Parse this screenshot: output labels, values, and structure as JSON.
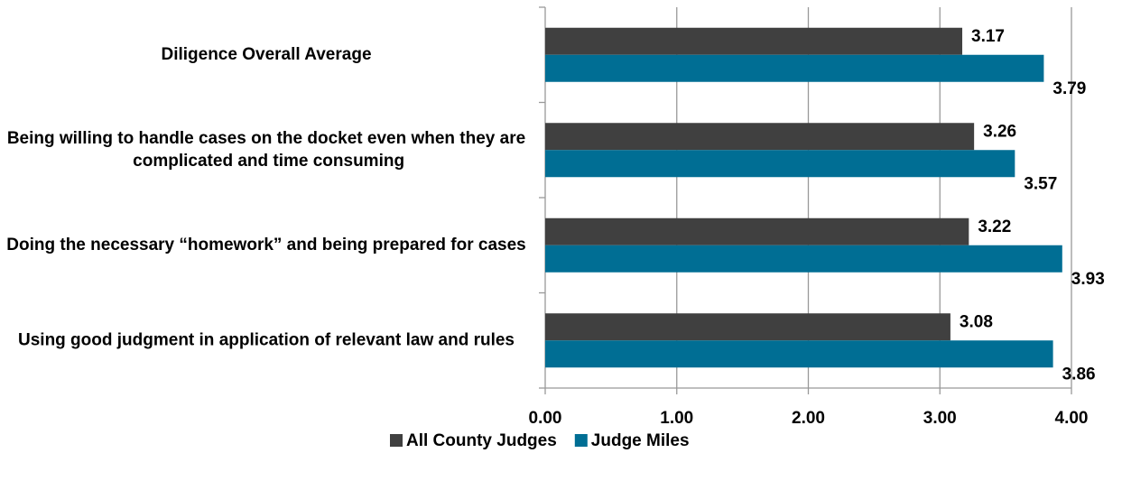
{
  "chart_data": {
    "type": "bar",
    "orientation": "horizontal",
    "categories": [
      "Diligence Overall Average",
      "Being willing to handle cases on the docket even when they are complicated and time consuming",
      "Doing the necessary “homework” and being prepared for cases",
      "Using good judgment in application of relevant law and rules"
    ],
    "series": [
      {
        "name": "All County Judges",
        "color": "#404040",
        "values": [
          3.17,
          3.26,
          3.22,
          3.08
        ]
      },
      {
        "name": "Judge Miles",
        "color": "#006e94",
        "values": [
          3.79,
          3.57,
          3.93,
          3.86
        ]
      }
    ],
    "xlim": [
      0,
      4
    ],
    "xticks": [
      {
        "value": 0,
        "label": "0.00"
      },
      {
        "value": 1,
        "label": "1.00"
      },
      {
        "value": 2,
        "label": "2.00"
      },
      {
        "value": 3,
        "label": "3.00"
      },
      {
        "value": 4,
        "label": "4.00"
      }
    ],
    "grid": true,
    "legend": "bottom"
  }
}
